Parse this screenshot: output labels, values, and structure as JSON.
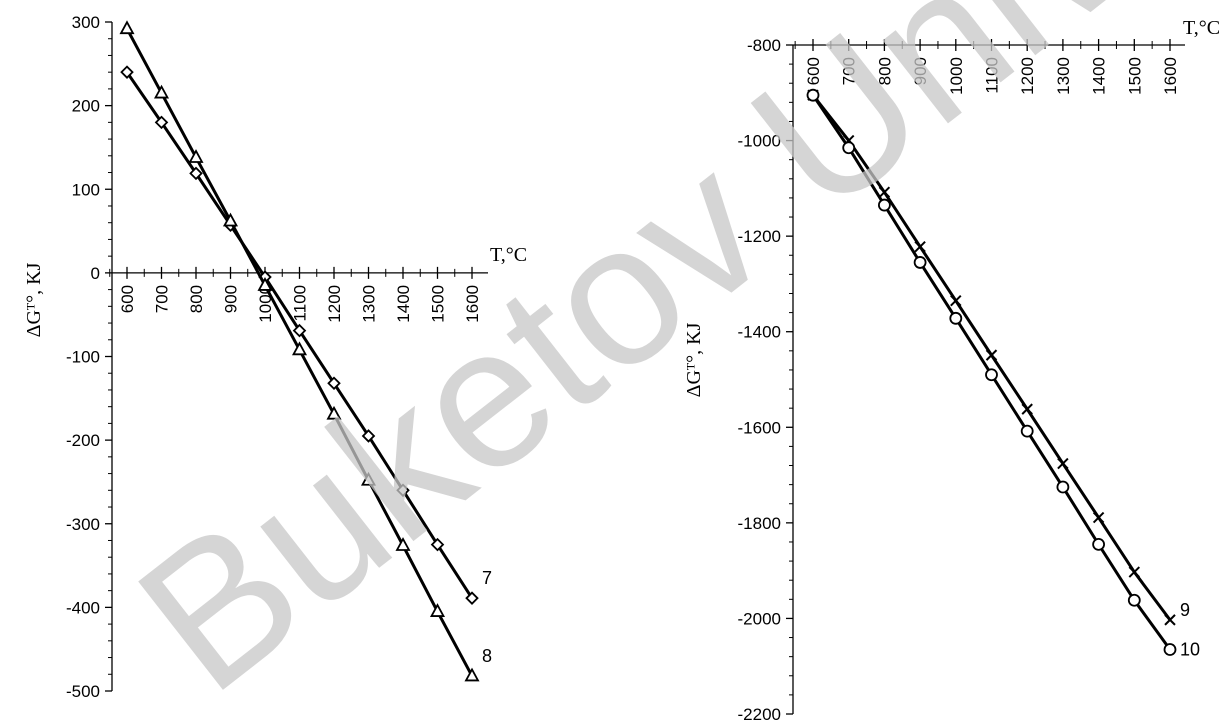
{
  "chart_data": [
    {
      "type": "line",
      "xlabel": "T,°C",
      "ylabel": "ΔGᵀ°, KJ",
      "xlim": [
        600,
        1600
      ],
      "ylim": [
        -500,
        300
      ],
      "x_ticks": [
        600,
        700,
        800,
        900,
        1000,
        1100,
        1200,
        1300,
        1400,
        1500,
        1600
      ],
      "y_ticks": [
        300,
        200,
        100,
        0,
        -100,
        -200,
        -300,
        -400,
        -500
      ],
      "series": [
        {
          "name": "7",
          "marker": "diamond",
          "x": [
            600,
            700,
            800,
            900,
            1000,
            1100,
            1200,
            1300,
            1400,
            1500,
            1600
          ],
          "y": [
            240,
            180,
            119,
            57,
            -5,
            -69,
            -132,
            -195,
            -260,
            -325,
            -389
          ]
        },
        {
          "name": "8",
          "marker": "triangle",
          "x": [
            600,
            700,
            800,
            900,
            1000,
            1100,
            1200,
            1300,
            1400,
            1500,
            1600
          ],
          "y": [
            292,
            215,
            138,
            62,
            -15,
            -92,
            -169,
            -248,
            -326,
            -405,
            -482
          ]
        }
      ]
    },
    {
      "type": "line",
      "xlabel": "T,°C",
      "ylabel": "ΔGᵀ°, KJ",
      "xlim": [
        600,
        1600
      ],
      "ylim": [
        -2200,
        -800
      ],
      "x_ticks": [
        600,
        700,
        800,
        900,
        1000,
        1100,
        1200,
        1300,
        1400,
        1500,
        1600
      ],
      "y_ticks": [
        -800,
        -1000,
        -1200,
        -1400,
        -1600,
        -1800,
        -2000,
        -2200
      ],
      "series": [
        {
          "name": "9",
          "marker": "cross",
          "x": [
            600,
            700,
            800,
            900,
            1000,
            1100,
            1200,
            1300,
            1400,
            1500,
            1600
          ],
          "y": [
            -905,
            -1000,
            -1108,
            -1222,
            -1335,
            -1449,
            -1562,
            -1676,
            -1789,
            -1903,
            -2003
          ]
        },
        {
          "name": "10",
          "marker": "circle",
          "x": [
            600,
            700,
            800,
            900,
            1000,
            1100,
            1200,
            1300,
            1400,
            1500,
            1600
          ],
          "y": [
            -905,
            -1015,
            -1135,
            -1255,
            -1372,
            -1490,
            -1608,
            -1725,
            -1845,
            -1962,
            -2065
          ]
        }
      ]
    }
  ],
  "watermark": "Buketov Unive"
}
